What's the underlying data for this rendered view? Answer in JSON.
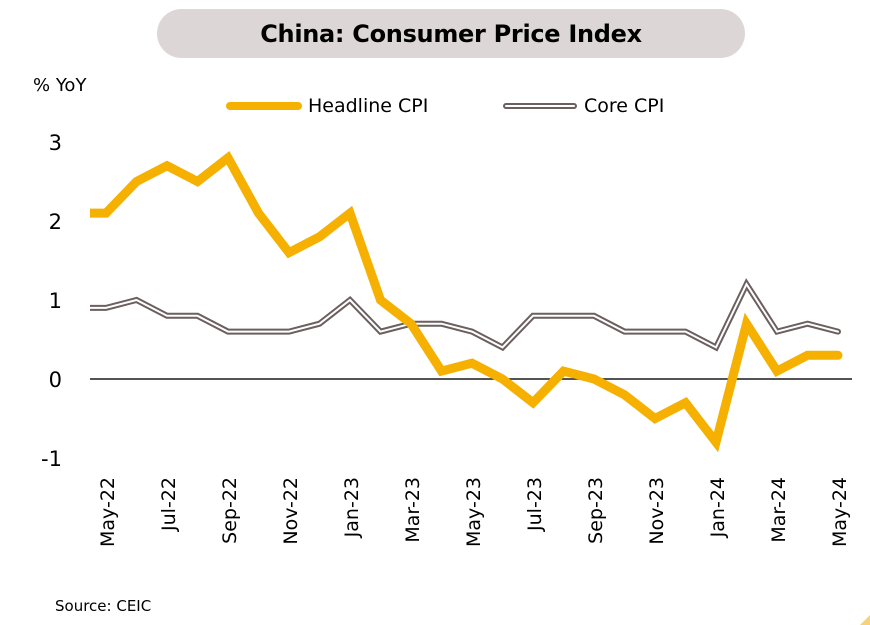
{
  "title": "China: Consumer Price Index",
  "source": "Source: CEIC",
  "colors": {
    "headline": "#f5b000",
    "core": "#6b5f5f",
    "title_bg": "#ddd6d6",
    "zero_line": "#1a1a1a"
  },
  "legend": [
    {
      "label": "Headline CPI",
      "style": "solid-thick"
    },
    {
      "label": "Core CPI",
      "style": "double-line"
    }
  ],
  "chart_data": {
    "type": "line",
    "title": "China: Consumer Price Index",
    "ylabel": "% YoY",
    "xlabel": "",
    "ylim": [
      -1,
      3
    ],
    "yticks": [
      3,
      2,
      1,
      0,
      -1
    ],
    "grid": false,
    "zero_line": true,
    "legend_position": "top-center",
    "x": [
      "Apr-22",
      "May-22",
      "Jun-22",
      "Jul-22",
      "Aug-22",
      "Sep-22",
      "Oct-22",
      "Nov-22",
      "Dec-22",
      "Jan-23",
      "Feb-23",
      "Mar-23",
      "Apr-23",
      "May-23",
      "Jun-23",
      "Jul-23",
      "Aug-23",
      "Sep-23",
      "Oct-23",
      "Nov-23",
      "Dec-23",
      "Jan-24",
      "Feb-24",
      "Mar-24",
      "Apr-24",
      "May-24"
    ],
    "xtick_labels": [
      "May-22",
      "Jul-22",
      "Sep-22",
      "Nov-22",
      "Jan-23",
      "Mar-23",
      "May-23",
      "Jul-23",
      "Sep-23",
      "Nov-23",
      "Jan-24",
      "Mar-24",
      "May-24"
    ],
    "series": [
      {
        "name": "Headline CPI",
        "values": [
          2.1,
          2.1,
          2.5,
          2.7,
          2.5,
          2.8,
          2.1,
          1.6,
          1.8,
          2.1,
          1.0,
          0.7,
          0.1,
          0.2,
          0.0,
          -0.3,
          0.1,
          0.0,
          -0.2,
          -0.5,
          -0.3,
          -0.8,
          0.7,
          0.1,
          0.3,
          0.3
        ]
      },
      {
        "name": "Core CPI",
        "values": [
          0.9,
          0.9,
          1.0,
          0.8,
          0.8,
          0.6,
          0.6,
          0.6,
          0.7,
          1.0,
          0.6,
          0.7,
          0.7,
          0.6,
          0.4,
          0.8,
          0.8,
          0.8,
          0.6,
          0.6,
          0.6,
          0.4,
          1.2,
          0.6,
          0.7,
          0.6
        ]
      }
    ],
    "source": "Source: CEIC"
  }
}
